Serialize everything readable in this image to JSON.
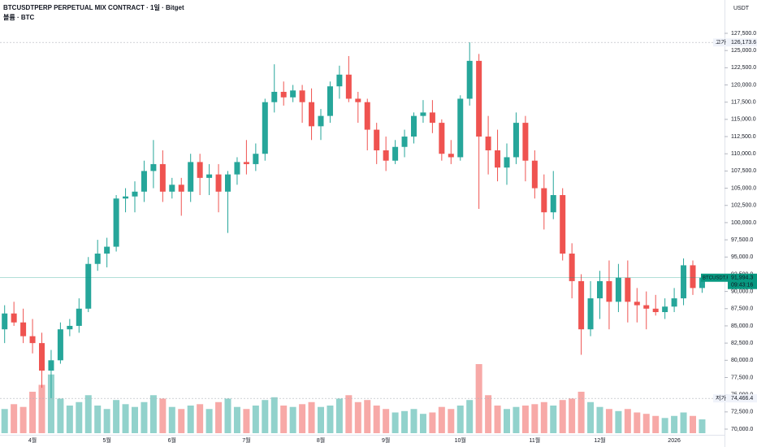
{
  "chart_data": {
    "type": "candlestick",
    "title": "BTCUSDTPERP PERPETUAL MIX CONTRACT · 1일 · Bitget",
    "subtitle": "볼륨 · BTC",
    "y_unit": "USDT",
    "up_color": "#26a69a",
    "down_color": "#ef5350",
    "grid": false,
    "ylim": [
      69410,
      132341
    ],
    "yticks": [
      {
        "value": 70000,
        "label": "70,000.0"
      },
      {
        "value": 72500,
        "label": "72,500.0"
      },
      {
        "value": 75000,
        "label": "75,000.0"
      },
      {
        "value": 77500,
        "label": "77,500.0"
      },
      {
        "value": 80000,
        "label": "80,000.0"
      },
      {
        "value": 82500,
        "label": "82,500.0"
      },
      {
        "value": 85000,
        "label": "85,000.0"
      },
      {
        "value": 87500,
        "label": "87,500.0"
      },
      {
        "value": 90000,
        "label": "90,000.0"
      },
      {
        "value": 92500,
        "label": "92,500.0"
      },
      {
        "value": 95000,
        "label": "95,000.0"
      },
      {
        "value": 97500,
        "label": "97,500.0"
      },
      {
        "value": 100000,
        "label": "100,000.0"
      },
      {
        "value": 102500,
        "label": "102,500.0"
      },
      {
        "value": 105000,
        "label": "105,000.0"
      },
      {
        "value": 107500,
        "label": "107,500.0"
      },
      {
        "value": 110000,
        "label": "110,000.0"
      },
      {
        "value": 112500,
        "label": "112,500.0"
      },
      {
        "value": 115000,
        "label": "115,000.0"
      },
      {
        "value": 117500,
        "label": "117,500.0"
      },
      {
        "value": 120000,
        "label": "120,000.0"
      },
      {
        "value": 122500,
        "label": "122,500.0"
      },
      {
        "value": 125000,
        "label": "125,000.0"
      },
      {
        "value": 127500,
        "label": "127,500.0"
      }
    ],
    "categories": [
      null,
      null,
      null,
      "4월",
      null,
      null,
      null,
      null,
      null,
      null,
      null,
      "5월",
      null,
      null,
      null,
      null,
      null,
      null,
      "6월",
      null,
      null,
      null,
      null,
      null,
      null,
      null,
      "7월",
      null,
      null,
      null,
      null,
      null,
      null,
      null,
      "8월",
      null,
      null,
      null,
      null,
      null,
      null,
      "9월",
      null,
      null,
      null,
      null,
      null,
      null,
      null,
      "10월",
      null,
      null,
      null,
      null,
      null,
      null,
      null,
      "11월",
      null,
      null,
      null,
      null,
      null,
      null,
      "12월",
      null,
      null,
      null,
      null,
      null,
      null,
      null,
      "2026",
      null,
      null,
      null
    ],
    "open": [
      84500,
      86800,
      85500,
      83500,
      82500,
      78500,
      80000,
      84500,
      85000,
      87500,
      94000,
      95500,
      96500,
      103500,
      103800,
      104500,
      107500,
      108500,
      104500,
      105500,
      104500,
      108800,
      106500,
      107000,
      104500,
      107000,
      108800,
      108500,
      110000,
      117500,
      119000,
      118200,
      119200,
      117500,
      114000,
      115500,
      119800,
      121500,
      118000,
      117500,
      113500,
      110500,
      109000,
      111000,
      112500,
      115500,
      116000,
      114500,
      110000,
      109500,
      118000,
      123500,
      112500,
      110500,
      108000,
      109500,
      114500,
      109000,
      105000,
      101500,
      104000,
      95500,
      91500,
      84500,
      89000,
      91500,
      88500,
      92000,
      88500,
      88000,
      87500,
      87000,
      87800,
      89000,
      93800,
      90500
    ],
    "high": [
      88000,
      88500,
      87500,
      86000,
      84000,
      81500,
      85500,
      86000,
      89000,
      95000,
      97500,
      97800,
      104000,
      105000,
      106000,
      109000,
      112000,
      110500,
      106500,
      106500,
      110000,
      110000,
      108500,
      108500,
      107500,
      109500,
      112000,
      111500,
      118000,
      123000,
      120500,
      120000,
      120000,
      119500,
      116500,
      120500,
      122800,
      124200,
      119000,
      118000,
      114500,
      112500,
      112000,
      113500,
      116000,
      117800,
      117800,
      115000,
      112000,
      118500,
      126200,
      124500,
      115500,
      113500,
      111500,
      116000,
      115500,
      110500,
      107000,
      107500,
      105000,
      97000,
      92500,
      91500,
      93000,
      94500,
      94000,
      94500,
      90500,
      90000,
      89500,
      89000,
      90500,
      94800,
      94500,
      92500
    ],
    "low": [
      82500,
      85000,
      82500,
      81000,
      76000,
      74500,
      79500,
      83500,
      84000,
      87000,
      93000,
      93500,
      95800,
      101500,
      101500,
      103000,
      105000,
      103000,
      103500,
      101000,
      103000,
      104000,
      104000,
      101500,
      98500,
      105500,
      107000,
      107500,
      109000,
      116000,
      117000,
      117500,
      114500,
      112000,
      112000,
      114500,
      118000,
      117500,
      114500,
      110500,
      108500,
      107500,
      108500,
      109500,
      111500,
      114500,
      113000,
      109000,
      108500,
      109000,
      117000,
      102000,
      107000,
      106000,
      105500,
      108500,
      106000,
      103500,
      99000,
      100500,
      94500,
      89000,
      80800,
      83500,
      86000,
      84500,
      87000,
      85500,
      85500,
      84500,
      86500,
      86000,
      87000,
      88000,
      89500,
      89800
    ],
    "close": [
      86800,
      85500,
      83500,
      82500,
      78500,
      80000,
      84500,
      85000,
      87500,
      94000,
      95500,
      96500,
      103500,
      103800,
      104500,
      107500,
      108500,
      104500,
      105500,
      104500,
      108800,
      106500,
      107000,
      104500,
      107000,
      108800,
      108500,
      110000,
      117500,
      119000,
      118200,
      119200,
      117500,
      114000,
      115500,
      119800,
      121500,
      118000,
      117500,
      113500,
      110500,
      109000,
      111000,
      112500,
      115500,
      116000,
      114500,
      110000,
      109500,
      118000,
      123500,
      112500,
      110500,
      108000,
      109500,
      114500,
      109000,
      105000,
      101500,
      104000,
      95500,
      91500,
      84500,
      89000,
      91500,
      88500,
      92000,
      88500,
      88000,
      87500,
      87000,
      87800,
      89000,
      93800,
      90500,
      91994.3
    ],
    "volume": [
      35,
      42,
      38,
      60,
      70,
      85,
      50,
      40,
      45,
      55,
      40,
      35,
      48,
      42,
      38,
      45,
      55,
      50,
      38,
      35,
      40,
      42,
      35,
      45,
      50,
      38,
      35,
      40,
      48,
      52,
      40,
      38,
      42,
      45,
      38,
      40,
      50,
      55,
      45,
      48,
      40,
      35,
      30,
      32,
      35,
      28,
      30,
      38,
      35,
      40,
      48,
      100,
      55,
      40,
      35,
      38,
      40,
      42,
      45,
      40,
      48,
      50,
      60,
      45,
      38,
      35,
      32,
      35,
      30,
      28,
      25,
      22,
      25,
      30,
      25,
      20
    ],
    "high_marker": {
      "label": "고가",
      "value": 126173.6,
      "value_label": "126,173.6"
    },
    "low_marker": {
      "label": "저가",
      "value": 74466.4,
      "value_label": "74,466.4"
    },
    "last_marker": {
      "symbol": "BTCUSDT.P",
      "value": 91994.3,
      "value_label": "91,994.3",
      "countdown": "09:43:16",
      "color": "#089981"
    }
  }
}
